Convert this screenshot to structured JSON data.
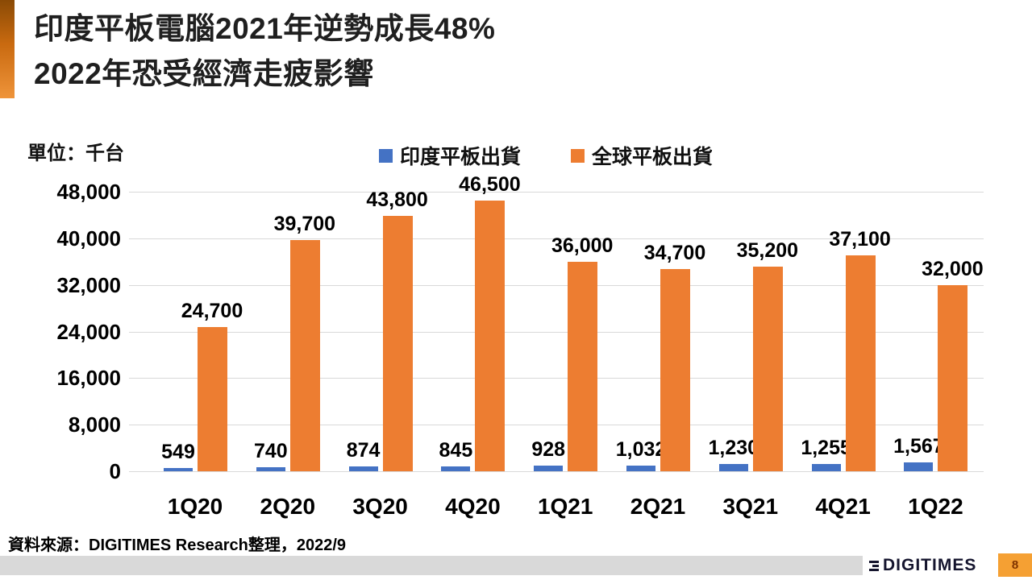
{
  "slide": {
    "title_lines": [
      "印度平板電腦2021年逆勢成長48%",
      "2022年恐受經濟走疲影響"
    ],
    "source_note": "資料來源：DIGITIMES Research整理，2022/9",
    "logo_text": "DIGITIMES",
    "page_number": "8"
  },
  "colors": {
    "india_series": "#4472C4",
    "global_series": "#ED7D31",
    "gridline": "#D9D9D9",
    "footer_band": "#D9D9D9",
    "page_box": "#F5A033",
    "page_number_text": "#7F3300"
  },
  "chart_data": {
    "type": "bar",
    "title": "",
    "unit_label": "單位：千台",
    "categories": [
      "1Q20",
      "2Q20",
      "3Q20",
      "4Q20",
      "1Q21",
      "2Q21",
      "3Q21",
      "4Q21",
      "1Q22"
    ],
    "series": [
      {
        "name": "印度平板出貨",
        "color": "#4472C4",
        "values": [
          549,
          740,
          874,
          845,
          928,
          1032,
          1230,
          1255,
          1567
        ]
      },
      {
        "name": "全球平板出貨",
        "color": "#ED7D31",
        "values": [
          24700,
          39700,
          43800,
          46500,
          36000,
          34700,
          35200,
          37100,
          32000
        ]
      }
    ],
    "ylim": [
      0,
      48000
    ],
    "ytick_step": 8000,
    "ytick_labels": [
      "0",
      "8,000",
      "16,000",
      "24,000",
      "32,000",
      "40,000",
      "48,000"
    ],
    "grid": true,
    "legend_position": "top",
    "data_labels": true
  }
}
